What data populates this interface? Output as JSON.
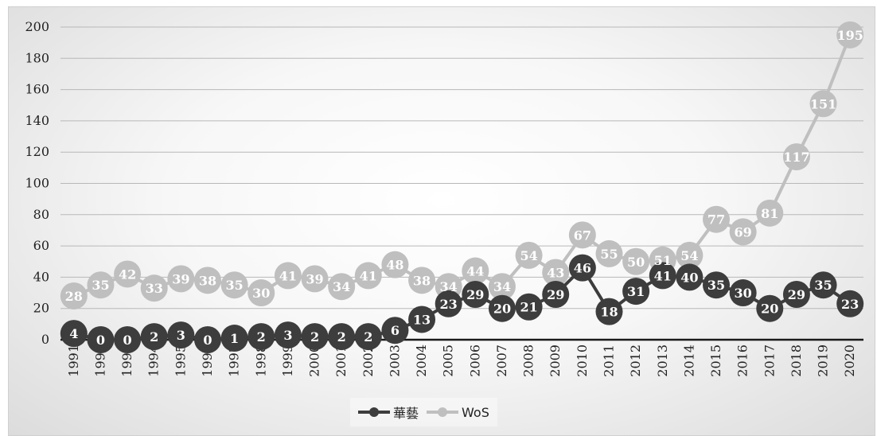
{
  "chart_data": {
    "type": "line",
    "x": [
      "1991",
      "1992",
      "1993",
      "1994",
      "1995",
      "1996",
      "1997",
      "1998",
      "1999",
      "2000",
      "2001",
      "2002",
      "2003",
      "2004",
      "2005",
      "2006",
      "2007",
      "2008",
      "2009",
      "2010",
      "2011",
      "2012",
      "2013",
      "2014",
      "2015",
      "2016",
      "2017",
      "2018",
      "2019",
      "2020"
    ],
    "series": [
      {
        "name": "華藝",
        "color": "#3d3d3d",
        "values": [
          4,
          0,
          0,
          2,
          3,
          0,
          1,
          2,
          3,
          2,
          2,
          2,
          6,
          13,
          23,
          29,
          20,
          21,
          29,
          46,
          18,
          31,
          41,
          40,
          35,
          30,
          20,
          29,
          35,
          23
        ]
      },
      {
        "name": "WoS",
        "color": "#bfbfbf",
        "values": [
          28,
          35,
          42,
          33,
          39,
          38,
          35,
          30,
          41,
          39,
          34,
          41,
          48,
          38,
          34,
          44,
          34,
          54,
          43,
          67,
          55,
          50,
          51,
          54,
          77,
          69,
          81,
          117,
          151,
          195
        ]
      }
    ],
    "ylim": [
      0,
      200
    ],
    "yticks": [
      0,
      20,
      40,
      60,
      80,
      100,
      120,
      140,
      160,
      180,
      200
    ],
    "grid": true,
    "legend": "bottom"
  }
}
